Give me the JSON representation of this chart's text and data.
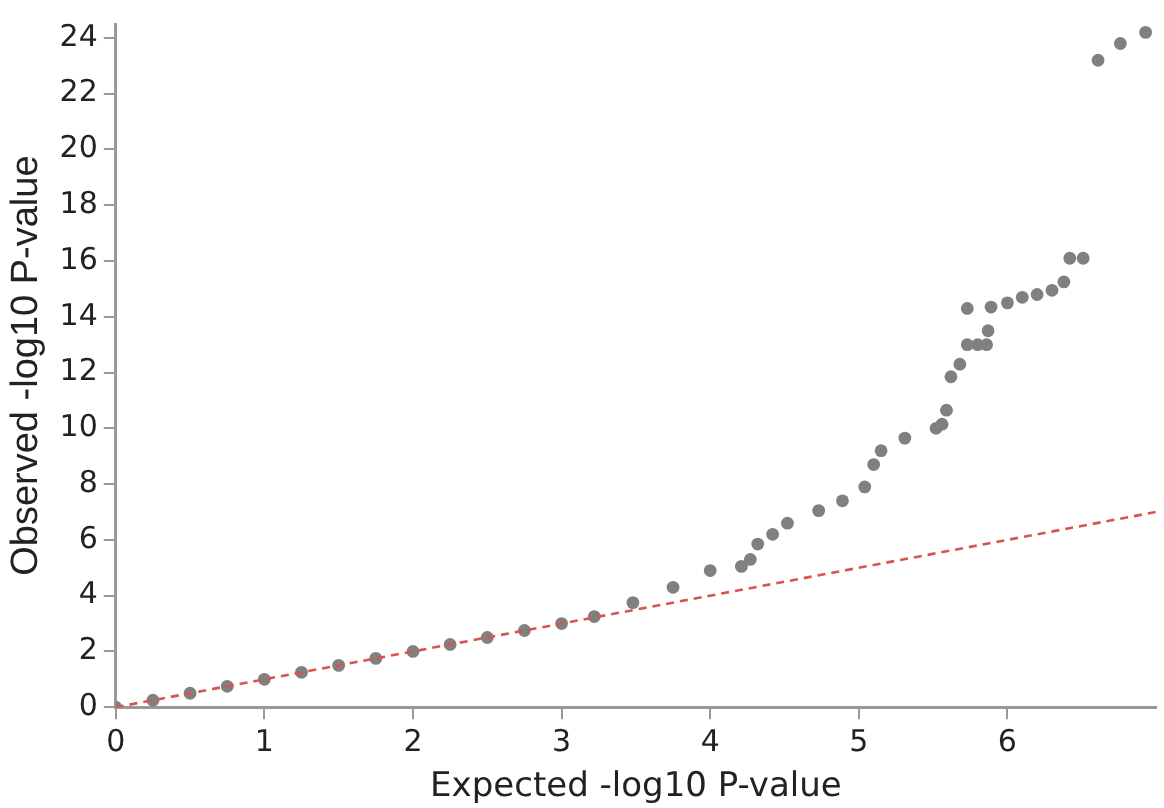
{
  "chart_data": {
    "type": "scatter",
    "xlabel": "Expected -log10 P-value",
    "ylabel": "Observed -log10 P-value",
    "xlim": [
      0,
      7
    ],
    "xticks": [
      0,
      1,
      2,
      3,
      4,
      5,
      6
    ],
    "ylim": [
      0,
      24.5
    ],
    "yticks": [
      0,
      2,
      4,
      6,
      8,
      10,
      12,
      14,
      16,
      18,
      20,
      22,
      24
    ],
    "grid": false,
    "legend": false,
    "marker": "circle",
    "series": [
      {
        "color": "#808080",
        "x": [
          0,
          0.25,
          0.5,
          0.75,
          1,
          1.25,
          1.5,
          1.75,
          2,
          2.25,
          2.5,
          2.75,
          3,
          3.22,
          3.48,
          3.75,
          4.0,
          4.21,
          4.27,
          4.32,
          4.42,
          4.52,
          4.73,
          4.89,
          5.04,
          5.1,
          5.15,
          5.31,
          5.52,
          5.56,
          5.59,
          5.62,
          5.68,
          5.73,
          5.8,
          5.86,
          5.87,
          5.73,
          5.89,
          6.0,
          6.1,
          6.2,
          6.3,
          6.38,
          6.42,
          6.51,
          6.61,
          6.76,
          6.93
        ],
        "values": [
          0,
          0.25,
          0.5,
          0.75,
          1,
          1.25,
          1.5,
          1.75,
          2,
          2.25,
          2.5,
          2.75,
          3.0,
          3.25,
          3.75,
          4.3,
          4.9,
          5.05,
          5.3,
          5.85,
          6.2,
          6.6,
          7.05,
          7.4,
          7.9,
          8.7,
          9.2,
          9.65,
          10.0,
          10.15,
          10.65,
          11.85,
          12.3,
          13.0,
          13.0,
          13.0,
          13.5,
          14.3,
          14.35,
          14.5,
          14.7,
          14.8,
          14.95,
          15.25,
          16.1,
          16.1,
          23.2,
          23.8,
          24.2
        ]
      },
      {
        "type": "line",
        "color": "#d9534f",
        "line_style": "dashed",
        "marker": "none",
        "x": [
          0,
          7
        ],
        "values": [
          0,
          7
        ]
      }
    ]
  }
}
